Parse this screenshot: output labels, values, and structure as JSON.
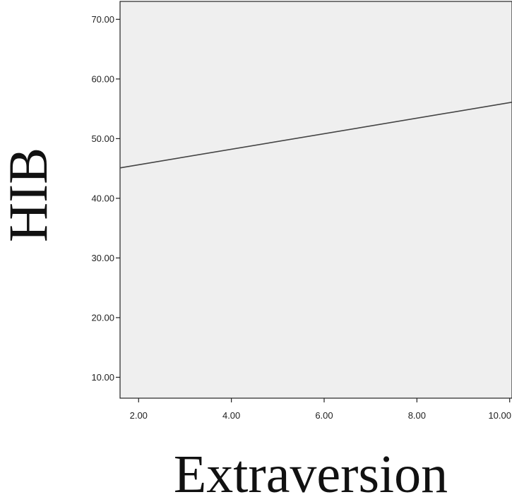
{
  "chart_data": {
    "type": "line",
    "title": "",
    "xlabel": "Extraversion",
    "ylabel": "HIB",
    "xlim": [
      1.6,
      10.05
    ],
    "ylim": [
      6.5,
      73.0
    ],
    "x_ticks": [
      2,
      4,
      6,
      8,
      10
    ],
    "x_tick_labels": [
      "2.00",
      "4.00",
      "6.00",
      "8.00",
      "10.00"
    ],
    "y_ticks": [
      10,
      20,
      30,
      40,
      50,
      60,
      70
    ],
    "y_tick_labels": [
      "10.00",
      "20.00",
      "30.00",
      "40.00",
      "50.00",
      "60.00",
      "70.00"
    ],
    "grid": false,
    "legend": false,
    "series": [
      {
        "x": [
          1.6,
          10.05
        ],
        "y": [
          45.1,
          56.1
        ]
      }
    ],
    "colors": {
      "plot_background": "#efefef",
      "line": "#444444",
      "frame": "#222222"
    }
  }
}
